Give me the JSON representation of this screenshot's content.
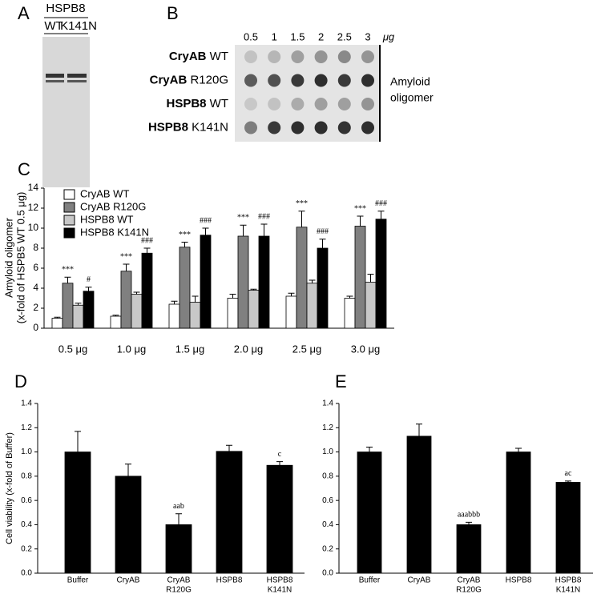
{
  "blots": [
    {
      "label": "A",
      "title": "HSPB8",
      "lanes": [
        "WT",
        "K141N"
      ]
    },
    {
      "label": "B",
      "doses": [
        "0.5",
        "1",
        "1.5",
        "2",
        "2.5",
        "3"
      ],
      "unit": "μg",
      "rows": [
        {
          "protein": "CryAB",
          "variant": "WT"
        },
        {
          "protein": "CryAB",
          "variant": "R120G"
        },
        {
          "protein": "HSPB8",
          "variant": "WT"
        },
        {
          "protein": "HSPB8",
          "variant": "K141N"
        }
      ],
      "side_label": [
        "Amyloid",
        "oligomer"
      ]
    }
  ],
  "chart_data": [
    {
      "type": "bar",
      "label": "C",
      "ylabel": [
        "Amyloid oligomer",
        "(x-fold of HSPB5 WT 0.5 μg)"
      ],
      "categories": [
        "0.5 μg",
        "1.0 μg",
        "1.5 μg",
        "2.0 μg",
        "2.5 μg",
        "3.0 μg"
      ],
      "ylim": [
        0,
        14
      ],
      "yticks": [
        0,
        2,
        4,
        6,
        8,
        10,
        12,
        14
      ],
      "legend": "top-left",
      "series": [
        {
          "name": "CryAB WT",
          "color": "#ffffff",
          "values": [
            1.0,
            1.2,
            2.4,
            3.0,
            3.2,
            3.0
          ],
          "errors": [
            0.1,
            0.1,
            0.3,
            0.4,
            0.3,
            0.2
          ]
        },
        {
          "name": "CryAB R120G",
          "color": "#808080",
          "values": [
            4.5,
            5.7,
            8.1,
            9.2,
            10.1,
            10.2
          ],
          "errors": [
            0.6,
            0.7,
            0.5,
            1.1,
            1.6,
            1.0
          ],
          "annotations": [
            "***",
            "***",
            "***",
            "***",
            "***",
            "***"
          ]
        },
        {
          "name": "HSPB8 WT",
          "color": "#c8c8c8",
          "values": [
            2.3,
            3.4,
            2.6,
            3.8,
            4.5,
            4.6
          ],
          "errors": [
            0.2,
            0.2,
            0.6,
            0.1,
            0.3,
            0.8
          ]
        },
        {
          "name": "HSPB8 K141N",
          "color": "#000000",
          "values": [
            3.7,
            7.5,
            9.3,
            9.2,
            8.0,
            10.9
          ],
          "errors": [
            0.4,
            0.5,
            0.7,
            1.2,
            0.9,
            0.8
          ],
          "annotations": [
            "#",
            "###",
            "###",
            "###",
            "###",
            "###"
          ]
        }
      ]
    },
    {
      "type": "bar",
      "label": "D",
      "ylabel": [
        "Cell viability (x-fold of Buffer)"
      ],
      "categories": [
        [
          "Buffer"
        ],
        [
          "CryAB"
        ],
        [
          "CryAB",
          "R120G"
        ],
        [
          "HSPB8"
        ],
        [
          "HSPB8",
          "K141N"
        ]
      ],
      "ylim": [
        0,
        1.4
      ],
      "yticks": [
        {
          "value": 0,
          "label": "0.0"
        },
        {
          "value": 0.2,
          "label": "0.2"
        },
        {
          "value": 0.4,
          "label": "0.4"
        },
        {
          "value": 0.6,
          "label": "0.6"
        },
        {
          "value": 0.8,
          "label": "0.8"
        },
        {
          "value": 1,
          "label": "1.0"
        },
        {
          "value": 1.2,
          "label": "1.2"
        },
        {
          "value": 1.4,
          "label": "1.4"
        }
      ],
      "series": [
        {
          "color": "#000000",
          "values": [
            1.0,
            0.8,
            0.4,
            1.005,
            0.89
          ],
          "errors": [
            0.17,
            0.1,
            0.09,
            0.05,
            0.03
          ],
          "annotations": [
            null,
            null,
            "aab",
            null,
            "c"
          ]
        }
      ]
    },
    {
      "type": "bar",
      "label": "E",
      "categories": [
        [
          "Buffer"
        ],
        [
          "CryAB"
        ],
        [
          "CryAB",
          "R120G"
        ],
        [
          "HSPB8"
        ],
        [
          "HSPB8",
          "K141N"
        ]
      ],
      "ylim": [
        0,
        1.4
      ],
      "yticks": [
        {
          "value": 0,
          "label": "0.0"
        },
        {
          "value": 0.2,
          "label": "0.2"
        },
        {
          "value": 0.4,
          "label": "0.4"
        },
        {
          "value": 0.6,
          "label": "0.6"
        },
        {
          "value": 0.8,
          "label": "0.8"
        },
        {
          "value": 1,
          "label": "1.0"
        },
        {
          "value": 1.2,
          "label": "1.2"
        },
        {
          "value": 1.4,
          "label": "1.4"
        }
      ],
      "series": [
        {
          "color": "#000000",
          "values": [
            1.0,
            1.13,
            0.4,
            1.0,
            0.75
          ],
          "errors": [
            0.04,
            0.1,
            0.02,
            0.03,
            0.01
          ],
          "annotations": [
            null,
            null,
            "aaabbb",
            null,
            "ac"
          ]
        }
      ]
    }
  ]
}
